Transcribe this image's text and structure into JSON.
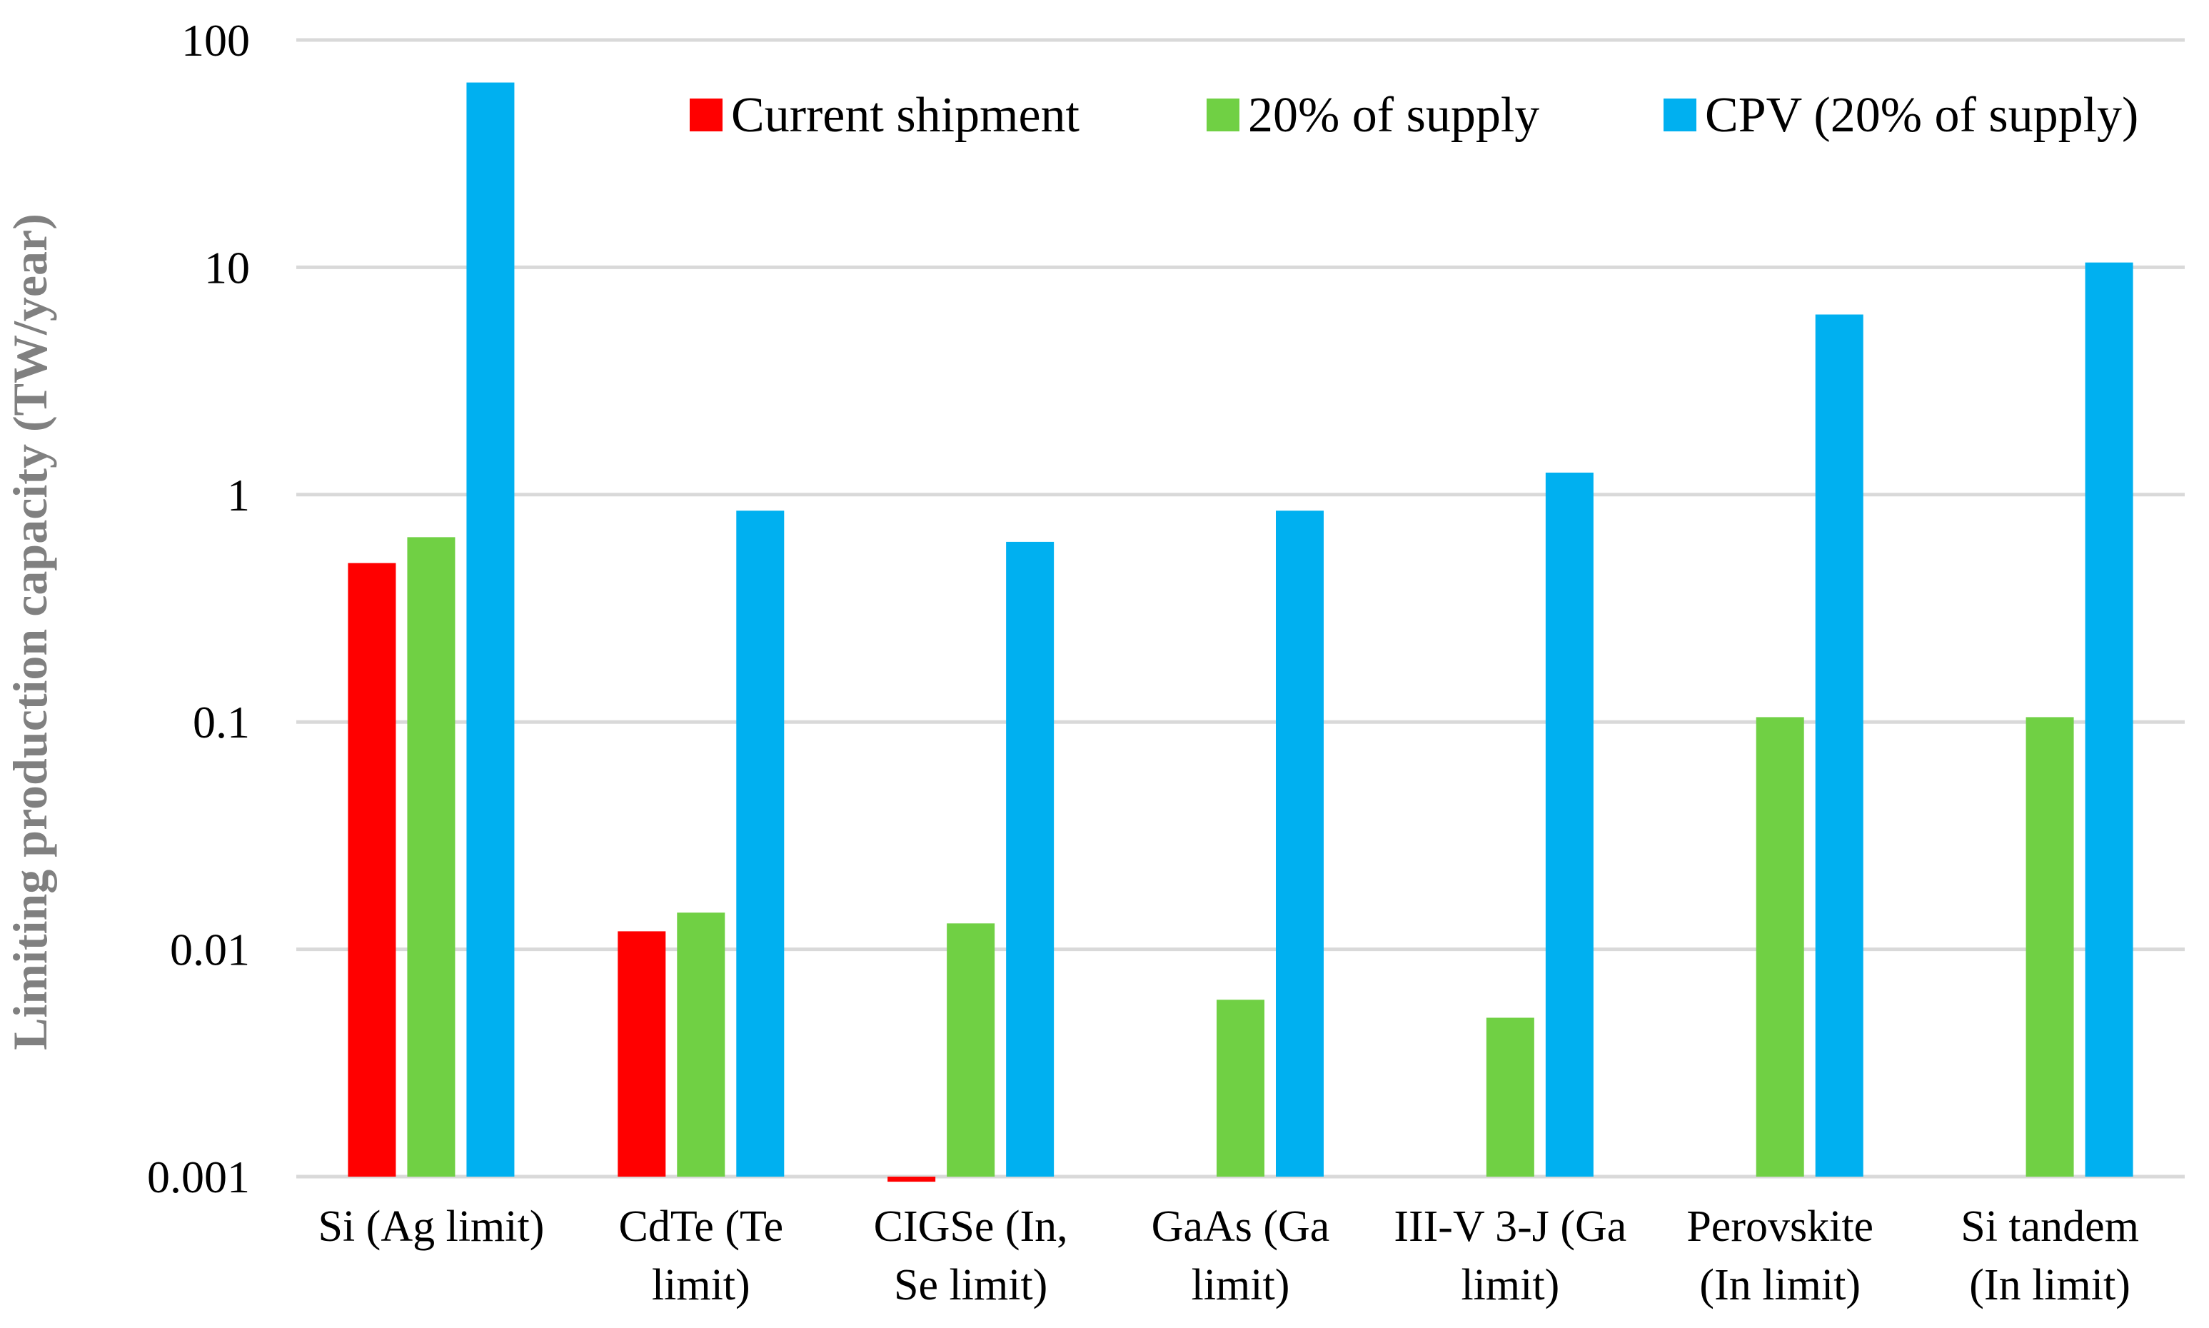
{
  "chart_data": {
    "type": "bar",
    "title": "",
    "xlabel": "",
    "ylabel": "Limiting production capacity (TW/year)",
    "yscale": "log",
    "ylim": [
      0.001,
      100
    ],
    "yticks": [
      {
        "value": 100,
        "label": "100"
      },
      {
        "value": 10,
        "label": "10"
      },
      {
        "value": 1,
        "label": "1"
      },
      {
        "value": 0.1,
        "label": "0.1"
      },
      {
        "value": 0.01,
        "label": "0.01"
      },
      {
        "value": 0.001,
        "label": "0.001"
      }
    ],
    "grid": true,
    "legend_position": "top-right",
    "categories": [
      {
        "lines": [
          "Si (Ag limit)"
        ]
      },
      {
        "lines": [
          "CdTe (Te",
          "limit)"
        ]
      },
      {
        "lines": [
          "CIGSe (In,",
          "Se limit)"
        ]
      },
      {
        "lines": [
          "GaAs (Ga",
          "limit)"
        ]
      },
      {
        "lines": [
          "III-V 3-J (Ga",
          "limit)"
        ]
      },
      {
        "lines": [
          "Perovskite",
          "(In limit)"
        ]
      },
      {
        "lines": [
          "Si tandem",
          "(In limit)"
        ]
      }
    ],
    "series": [
      {
        "name": "Current shipment",
        "color": "#ff0000",
        "values": [
          0.5,
          0.012,
          0.00095,
          null,
          null,
          null,
          null
        ]
      },
      {
        "name": "20% of supply",
        "color": "#70d044",
        "values": [
          0.65,
          0.0145,
          0.013,
          0.006,
          0.005,
          0.105,
          0.105
        ]
      },
      {
        "name": "CPV (20% of supply)",
        "color": "#00b0f0",
        "values": [
          65,
          0.85,
          0.62,
          0.85,
          1.25,
          6.2,
          10.5
        ]
      }
    ]
  }
}
